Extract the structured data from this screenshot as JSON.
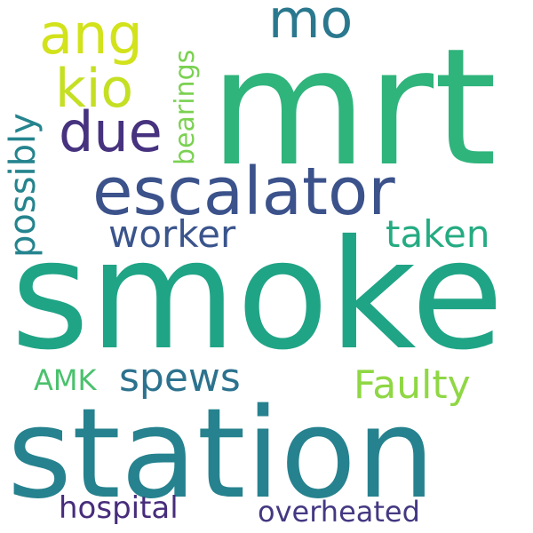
{
  "words": {
    "smoke": {
      "text": "smoke",
      "color": "#20a486"
    },
    "station": {
      "text": "station",
      "color": "#26828e"
    },
    "mrt": {
      "text": "mrt",
      "color": "#2fb47c"
    },
    "escalator": {
      "text": "escalator",
      "color": "#3b528b"
    },
    "ang": {
      "text": "ang",
      "color": "#d2e21b"
    },
    "kio": {
      "text": "kio",
      "color": "#c5df23"
    },
    "due": {
      "text": "due",
      "color": "#46327e"
    },
    "mo": {
      "text": "mo",
      "color": "#2a788e"
    },
    "worker": {
      "text": "worker",
      "color": "#3a548c"
    },
    "taken": {
      "text": "taken",
      "color": "#25ab82"
    },
    "spews": {
      "text": "spews",
      "color": "#2c728e"
    },
    "faulty": {
      "text": "Faulty",
      "color": "#8fd744"
    },
    "amk": {
      "text": "AMK",
      "color": "#4ac16d"
    },
    "hospital": {
      "text": "hospital",
      "color": "#472d7b"
    },
    "overheated": {
      "text": "overheated",
      "color": "#453882"
    },
    "possibly": {
      "text": "possibly",
      "color": "#25848e"
    },
    "bearings": {
      "text": "bearings",
      "color": "#7ad151"
    }
  }
}
